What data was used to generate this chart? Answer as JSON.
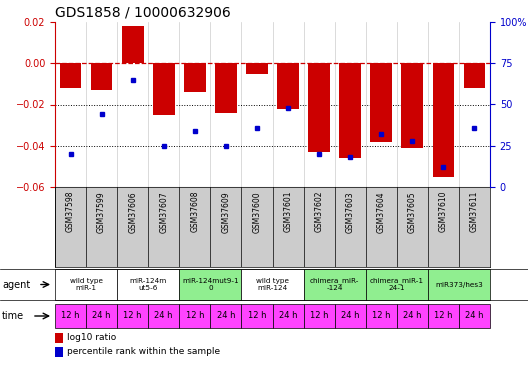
{
  "title": "GDS1858 / 10000632906",
  "samples": [
    "GSM37598",
    "GSM37599",
    "GSM37606",
    "GSM37607",
    "GSM37608",
    "GSM37609",
    "GSM37600",
    "GSM37601",
    "GSM37602",
    "GSM37603",
    "GSM37604",
    "GSM37605",
    "GSM37610",
    "GSM37611"
  ],
  "log10_ratio": [
    -0.012,
    -0.013,
    0.018,
    -0.025,
    -0.014,
    -0.024,
    -0.005,
    -0.022,
    -0.043,
    -0.046,
    -0.038,
    -0.041,
    -0.055,
    -0.012
  ],
  "percentile_rank": [
    20,
    44,
    65,
    25,
    34,
    25,
    36,
    48,
    20,
    18,
    32,
    28,
    12,
    36
  ],
  "ylim_left": [
    -0.06,
    0.02
  ],
  "ylim_right": [
    0,
    100
  ],
  "yticks_left": [
    -0.06,
    -0.04,
    -0.02,
    0,
    0.02
  ],
  "yticks_right": [
    0,
    25,
    50,
    75,
    100
  ],
  "dotted_hlines": [
    -0.02,
    -0.04
  ],
  "agent_groups": [
    {
      "label": "wild type\nmiR-1",
      "cols": [
        0,
        1
      ],
      "color": "#ffffff"
    },
    {
      "label": "miR-124m\nut5-6",
      "cols": [
        2,
        3
      ],
      "color": "#ffffff"
    },
    {
      "label": "miR-124mut9-1\n0",
      "cols": [
        4,
        5
      ],
      "color": "#90ee90"
    },
    {
      "label": "wild type\nmiR-124",
      "cols": [
        6,
        7
      ],
      "color": "#ffffff"
    },
    {
      "label": "chimera_miR-\n-124",
      "cols": [
        8,
        9
      ],
      "color": "#90ee90"
    },
    {
      "label": "chimera_miR-1\n24-1",
      "cols": [
        10,
        11
      ],
      "color": "#90ee90"
    },
    {
      "label": "miR373/hes3",
      "cols": [
        12,
        13
      ],
      "color": "#90ee90"
    }
  ],
  "time_labels": [
    "12 h",
    "24 h",
    "12 h",
    "24 h",
    "12 h",
    "24 h",
    "12 h",
    "24 h",
    "12 h",
    "24 h",
    "12 h",
    "24 h",
    "12 h",
    "24 h"
  ],
  "time_color": "#ff44ff",
  "bar_color": "#cc0000",
  "dot_color": "#0000cc",
  "left_axis_color": "#cc0000",
  "right_axis_color": "#0000cc",
  "sample_bg_color": "#cccccc",
  "title_fontsize": 10,
  "tick_fontsize": 7,
  "bar_width": 0.7
}
